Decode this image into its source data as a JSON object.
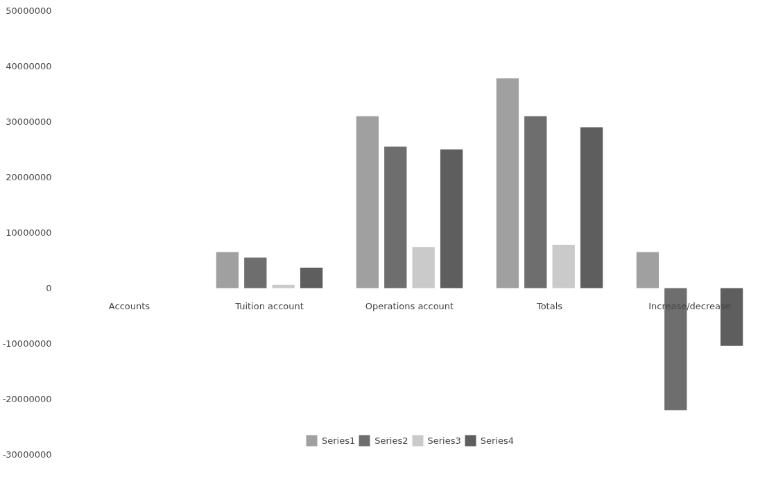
{
  "chart_data": {
    "type": "bar",
    "categories": [
      "Accounts",
      "Tuition account",
      "Operations account",
      "Totals",
      "Increase/decrease"
    ],
    "series": [
      {
        "name": "Series1",
        "color": "#a0a0a0",
        "values": [
          null,
          6500000,
          31000000,
          37800000,
          6500000
        ]
      },
      {
        "name": "Series2",
        "color": "#6e6e6e",
        "values": [
          null,
          5500000,
          25500000,
          31000000,
          -22000000
        ]
      },
      {
        "name": "Series3",
        "color": "#cacaca",
        "values": [
          null,
          600000,
          7400000,
          7800000,
          null
        ]
      },
      {
        "name": "Series4",
        "color": "#5e5e5e",
        "values": [
          null,
          3700000,
          25000000,
          29000000,
          -10400000
        ]
      }
    ],
    "ylim": [
      -30000000,
      50000000
    ],
    "yticks": [
      -30000000,
      -20000000,
      -10000000,
      0,
      10000000,
      20000000,
      30000000,
      40000000,
      50000000
    ],
    "grid": false,
    "legend": "bottom"
  }
}
